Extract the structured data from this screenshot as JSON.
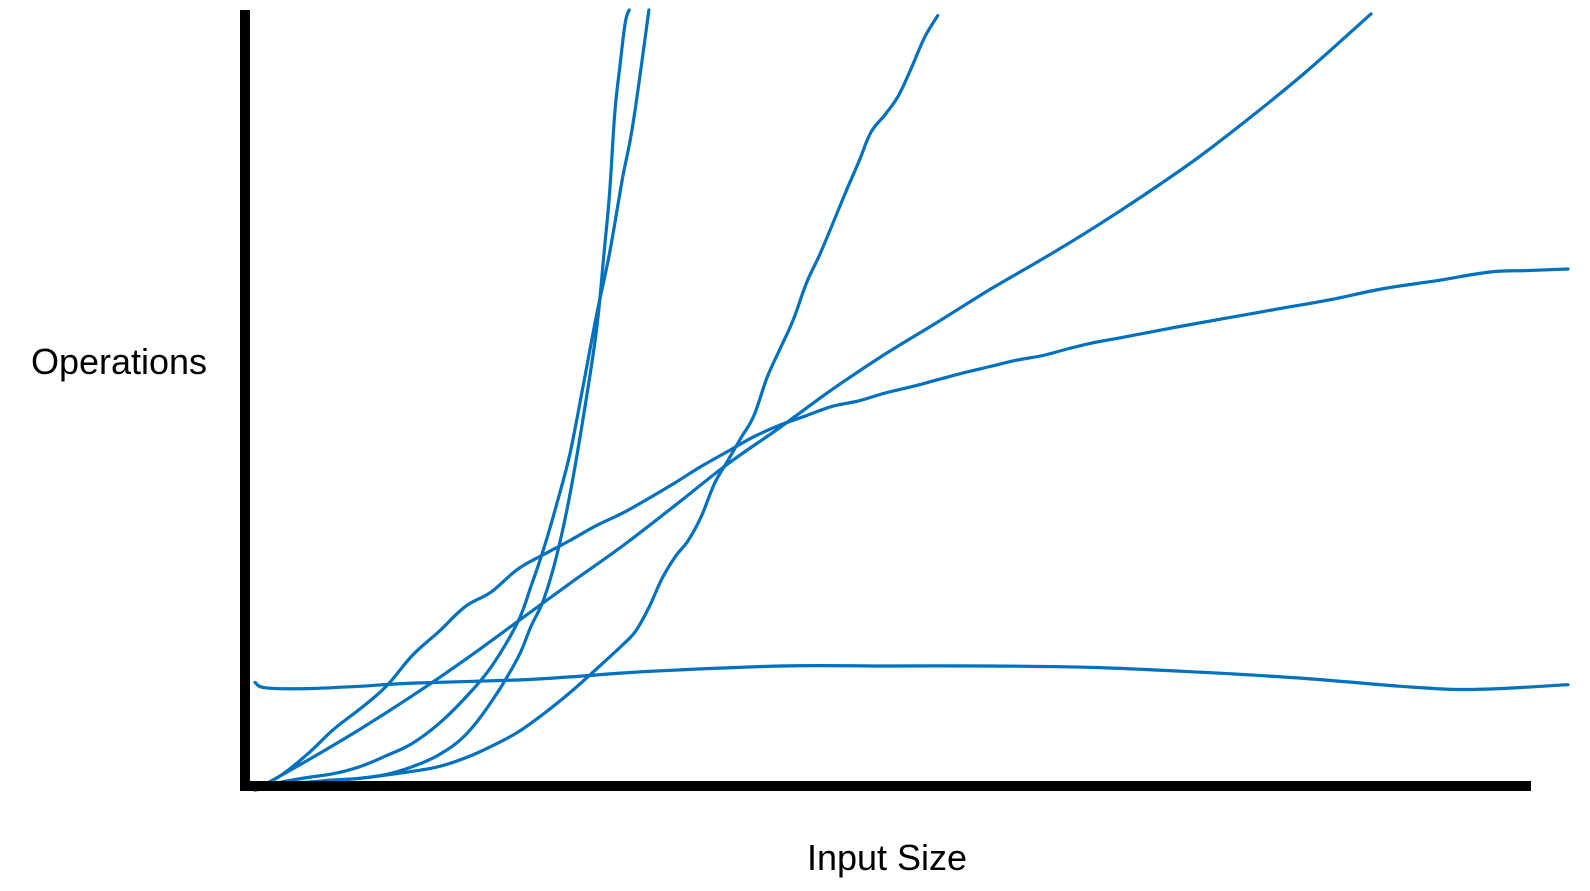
{
  "chart_data": {
    "type": "line",
    "title": "",
    "xlabel": "Input Size",
    "ylabel": "Operations",
    "grid": false,
    "legend": "none",
    "axis_color": "#000000",
    "line_color": "#0070C0",
    "xlim": [
      0,
      100
    ],
    "ylim": [
      0,
      100
    ],
    "series": [
      {
        "points": [
          [
            0,
            13.8
          ],
          [
            0.8,
            13.1
          ],
          [
            4,
            13
          ],
          [
            8,
            13.3
          ],
          [
            12,
            13.7
          ],
          [
            20,
            14.1
          ],
          [
            24,
            14.5
          ],
          [
            30,
            15.2
          ],
          [
            40,
            15.9
          ],
          [
            48,
            15.9
          ],
          [
            56,
            15.9
          ],
          [
            64,
            15.7
          ],
          [
            72,
            15.1
          ],
          [
            80,
            14.3
          ],
          [
            88,
            13.2
          ],
          [
            93,
            12.9
          ],
          [
            100,
            13.5
          ]
        ]
      },
      {
        "points": [
          [
            0,
            0
          ],
          [
            2,
            1.9
          ],
          [
            4,
            4.6
          ],
          [
            6,
            7.8
          ],
          [
            8,
            10.4
          ],
          [
            10,
            13.3
          ],
          [
            12,
            17.3
          ],
          [
            14,
            20.3
          ],
          [
            16,
            23.5
          ],
          [
            18,
            25.4
          ],
          [
            20,
            28.3
          ],
          [
            22,
            30.2
          ],
          [
            24,
            32
          ],
          [
            26,
            33.9
          ],
          [
            28,
            35.5
          ],
          [
            30,
            37.4
          ],
          [
            32,
            39.4
          ],
          [
            34,
            41.5
          ],
          [
            36,
            43.4
          ],
          [
            38,
            45.3
          ],
          [
            40,
            46.8
          ],
          [
            42,
            48
          ],
          [
            44,
            49.2
          ],
          [
            46,
            49.9
          ],
          [
            48,
            50.9
          ],
          [
            50,
            51.7
          ],
          [
            52,
            52.6
          ],
          [
            54,
            53.5
          ],
          [
            56,
            54.3
          ],
          [
            58,
            55.1
          ],
          [
            60,
            55.7
          ],
          [
            62,
            56.6
          ],
          [
            64,
            57.4
          ],
          [
            66,
            58
          ],
          [
            70,
            59.3
          ],
          [
            74,
            60.5
          ],
          [
            78,
            61.7
          ],
          [
            82,
            62.9
          ],
          [
            86,
            64.3
          ],
          [
            90,
            65.3
          ],
          [
            94,
            66.4
          ],
          [
            97,
            66.6
          ],
          [
            100,
            66.8
          ]
        ]
      },
      {
        "points": [
          [
            0,
            0
          ],
          [
            4,
            3.8
          ],
          [
            8,
            7.8
          ],
          [
            12,
            12.1
          ],
          [
            16,
            16.7
          ],
          [
            20,
            21.6
          ],
          [
            24,
            26.5
          ],
          [
            28,
            31.3
          ],
          [
            32,
            36.5
          ],
          [
            36,
            41.8
          ],
          [
            40,
            46.5
          ],
          [
            44,
            51.4
          ],
          [
            48,
            55.9
          ],
          [
            52,
            60
          ],
          [
            56,
            64.2
          ],
          [
            60,
            68.1
          ],
          [
            64,
            72.2
          ],
          [
            68,
            76.6
          ],
          [
            72,
            81.3
          ],
          [
            76,
            86.5
          ],
          [
            80,
            92
          ],
          [
            85,
            99.5
          ]
        ]
      },
      {
        "points": [
          [
            0,
            0
          ],
          [
            2,
            1
          ],
          [
            4,
            1.6
          ],
          [
            6,
            2.1
          ],
          [
            8,
            3
          ],
          [
            10,
            4.4
          ],
          [
            12,
            6
          ],
          [
            14,
            8.5
          ],
          [
            16,
            11.8
          ],
          [
            18,
            15.8
          ],
          [
            20,
            21.5
          ],
          [
            21,
            26
          ],
          [
            22,
            31
          ],
          [
            23,
            36.8
          ],
          [
            24,
            43.2
          ],
          [
            25,
            51.9
          ],
          [
            26,
            60.8
          ],
          [
            27,
            68.8
          ],
          [
            28,
            78.5
          ],
          [
            28.8,
            85.5
          ],
          [
            30,
            100
          ]
        ]
      },
      {
        "points": [
          [
            0,
            0
          ],
          [
            4,
            0.9
          ],
          [
            8,
            1.5
          ],
          [
            12,
            2.4
          ],
          [
            14,
            3
          ],
          [
            16,
            4.1
          ],
          [
            18,
            5.6
          ],
          [
            20,
            7.4
          ],
          [
            22,
            9.8
          ],
          [
            24,
            12.5
          ],
          [
            26,
            15.5
          ],
          [
            28,
            18.6
          ],
          [
            29,
            20.4
          ],
          [
            30,
            23.4
          ],
          [
            31,
            27.1
          ],
          [
            32,
            29.9
          ],
          [
            33,
            32
          ],
          [
            34,
            35.1
          ],
          [
            35,
            39.3
          ],
          [
            36,
            42.2
          ],
          [
            37,
            45.1
          ],
          [
            38,
            48
          ],
          [
            39,
            52.9
          ],
          [
            40,
            56.6
          ],
          [
            41,
            60.3
          ],
          [
            42,
            65
          ],
          [
            43,
            68.6
          ],
          [
            44,
            72.6
          ],
          [
            45,
            76.7
          ],
          [
            46,
            80.6
          ],
          [
            46.9,
            84.3
          ],
          [
            48,
            86.6
          ],
          [
            49,
            89
          ],
          [
            50,
            92.6
          ],
          [
            51,
            96.5
          ],
          [
            52,
            99.3
          ]
        ]
      },
      {
        "points": [
          [
            0,
            0
          ],
          [
            2,
            0.9
          ],
          [
            4,
            1
          ],
          [
            6,
            1.3
          ],
          [
            8,
            1.5
          ],
          [
            10,
            2
          ],
          [
            12,
            3
          ],
          [
            14,
            4.5
          ],
          [
            16,
            7
          ],
          [
            18,
            11.3
          ],
          [
            20,
            16.9
          ],
          [
            21,
            20.9
          ],
          [
            22,
            24.5
          ],
          [
            23,
            30.2
          ],
          [
            24,
            38
          ],
          [
            25,
            47.8
          ],
          [
            26,
            58.9
          ],
          [
            26.6,
            69.2
          ],
          [
            27,
            76.4
          ],
          [
            27.4,
            86.8
          ],
          [
            27.8,
            92.9
          ],
          [
            28.2,
            98.4
          ],
          [
            28.5,
            100
          ]
        ]
      }
    ]
  }
}
